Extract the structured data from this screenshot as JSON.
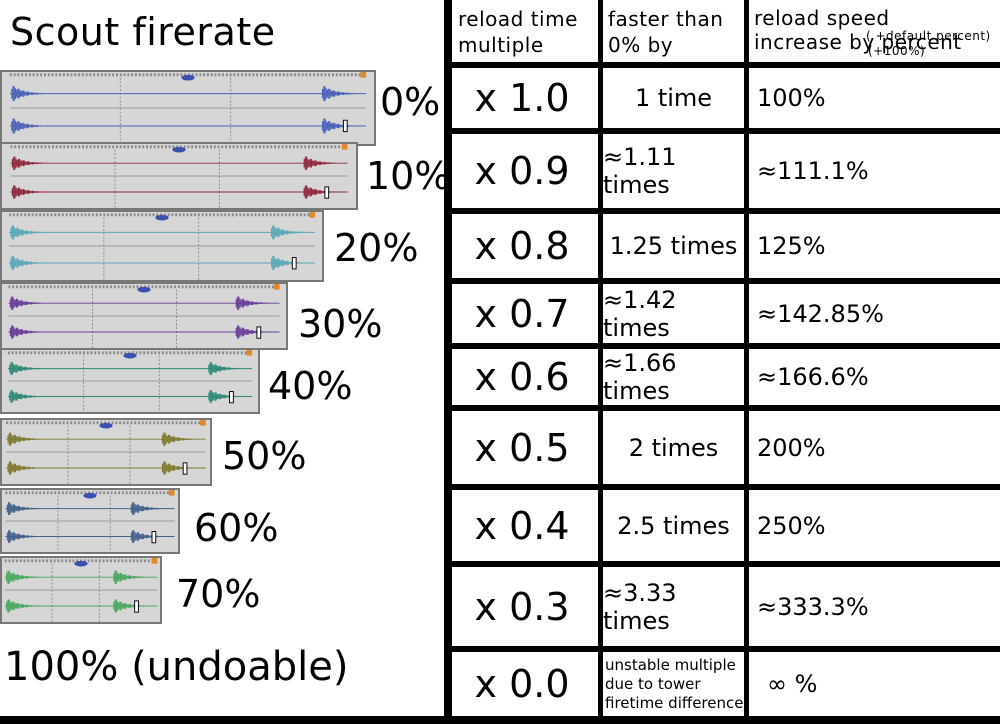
{
  "title": "Scout firerate",
  "undoable_label": "100% (undoable)",
  "headers": {
    "reload_multiple": "reload time multiple",
    "faster": "faster than 0% by",
    "speed_increase": "reload speed increase by percent",
    "speed_note_1": "( +default percent)",
    "speed_note_2": "(+100%)"
  },
  "tracks": [
    {
      "label": "0%",
      "color": "#4a62b8"
    },
    {
      "label": "10%",
      "color": "#8e2a3c"
    },
    {
      "label": "20%",
      "color": "#5ba8b8"
    },
    {
      "label": "30%",
      "color": "#6a3f98"
    },
    {
      "label": "40%",
      "color": "#2e8a78"
    },
    {
      "label": "50%",
      "color": "#807a30"
    },
    {
      "label": "60%",
      "color": "#44628e"
    },
    {
      "label": "70%",
      "color": "#4aa860"
    }
  ],
  "rows": [
    {
      "multiple": "x 1.0",
      "faster": "1 time",
      "speed": "100%"
    },
    {
      "multiple": "x 0.9",
      "faster": "≈1.11 times",
      "speed": "≈111.1%"
    },
    {
      "multiple": "x 0.8",
      "faster": "1.25 times",
      "speed": "125%"
    },
    {
      "multiple": "x 0.7",
      "faster": "≈1.42 times",
      "speed": "≈142.85%"
    },
    {
      "multiple": "x 0.6",
      "faster": "≈1.66 times",
      "speed": "≈166.6%"
    },
    {
      "multiple": "x 0.5",
      "faster": "2 times",
      "speed": "200%"
    },
    {
      "multiple": "x 0.4",
      "faster": "2.5 times",
      "speed": "250%"
    },
    {
      "multiple": "x 0.3",
      "faster": "≈3.33 times",
      "speed": "≈333.3%"
    },
    {
      "multiple": "x 0.0",
      "faster": "unstable multiple due to tower firetime difference",
      "speed": "∞ %"
    }
  ]
}
